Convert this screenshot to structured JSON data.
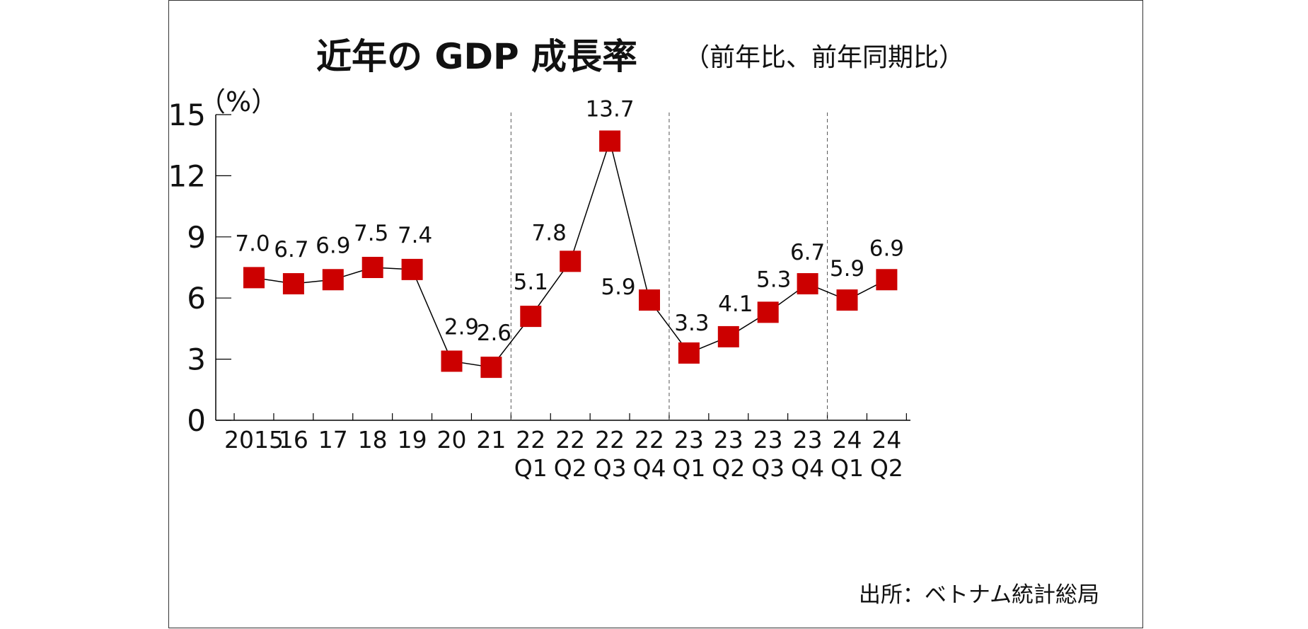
{
  "chart_data": {
    "type": "line",
    "title": "近年の GDP 成長率",
    "subtitle": "（前年比、前年同期比）",
    "unit_label": "（%）",
    "source": "出所：ベトナム統計総局",
    "ylim": [
      0,
      15
    ],
    "yticks": [
      0,
      3,
      6,
      9,
      12,
      15
    ],
    "categories": [
      {
        "line1": "2015",
        "line2": ""
      },
      {
        "line1": "16",
        "line2": ""
      },
      {
        "line1": "17",
        "line2": ""
      },
      {
        "line1": "18",
        "line2": ""
      },
      {
        "line1": "19",
        "line2": ""
      },
      {
        "line1": "20",
        "line2": ""
      },
      {
        "line1": "21",
        "line2": ""
      },
      {
        "line1": "22",
        "line2": "Q1"
      },
      {
        "line1": "22",
        "line2": "Q2"
      },
      {
        "line1": "22",
        "line2": "Q3"
      },
      {
        "line1": "22",
        "line2": "Q4"
      },
      {
        "line1": "23",
        "line2": "Q1"
      },
      {
        "line1": "23",
        "line2": "Q2"
      },
      {
        "line1": "23",
        "line2": "Q3"
      },
      {
        "line1": "23",
        "line2": "Q4"
      },
      {
        "line1": "24",
        "line2": "Q1"
      },
      {
        "line1": "24",
        "line2": "Q2"
      }
    ],
    "values": [
      7.0,
      6.7,
      6.9,
      7.5,
      7.4,
      2.9,
      2.6,
      5.1,
      7.8,
      13.7,
      5.9,
      3.3,
      4.1,
      5.3,
      6.7,
      5.9,
      6.9
    ],
    "value_labels": [
      "7.0",
      "6.7",
      "6.9",
      "7.5",
      "7.4",
      "2.9",
      "2.6",
      "5.1",
      "7.8",
      "13.7",
      "5.9",
      "3.3",
      "4.1",
      "5.3",
      "6.7",
      "5.9",
      "6.9"
    ],
    "separators_after_index": [
      6,
      10,
      14
    ],
    "marker_color": "#cc0000",
    "line_color": "#000000",
    "grid": false,
    "legend": "none"
  }
}
